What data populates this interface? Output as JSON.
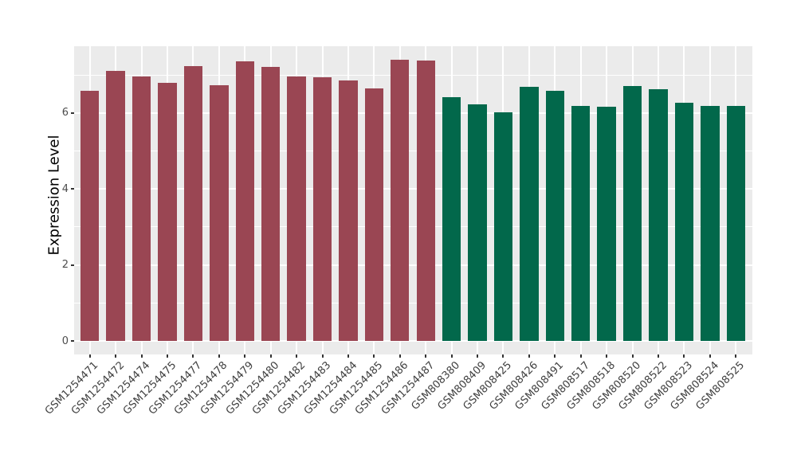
{
  "chart_data": {
    "type": "bar",
    "title": "",
    "xlabel": "",
    "ylabel": "Expression Level",
    "ylim": [
      0,
      7.75
    ],
    "yticks": [
      0,
      2,
      4,
      6
    ],
    "minor_gridlines": [
      1,
      3,
      5,
      7
    ],
    "grid": "white major and minor lines on gray panel, vertical line per category",
    "legend": "none",
    "panel_bg": "#EBEBEB",
    "grid_color": "#FFFFFF",
    "axis_text_color": "#4D4D4D",
    "group_colors": {
      "left_group_red": "#9A4653",
      "right_group_green": "#02684B"
    },
    "categories": [
      "GSM1254471",
      "GSM1254472",
      "GSM1254474",
      "GSM1254475",
      "GSM1254477",
      "GSM1254478",
      "GSM1254479",
      "GSM1254480",
      "GSM1254482",
      "GSM1254483",
      "GSM1254484",
      "GSM1254485",
      "GSM1254486",
      "GSM1254487",
      "GSM808380",
      "GSM808409",
      "GSM808425",
      "GSM808426",
      "GSM808491",
      "GSM808517",
      "GSM808518",
      "GSM808520",
      "GSM808522",
      "GSM808523",
      "GSM808524",
      "GSM808525"
    ],
    "values": [
      6.59,
      7.11,
      6.97,
      6.8,
      7.24,
      6.74,
      7.36,
      7.21,
      6.96,
      6.93,
      6.86,
      6.65,
      7.41,
      7.38,
      6.42,
      6.22,
      6.01,
      6.69,
      6.59,
      6.18,
      6.17,
      6.7,
      6.63,
      6.27,
      6.18,
      6.19
    ],
    "bar_colors": [
      "#9A4653",
      "#9A4653",
      "#9A4653",
      "#9A4653",
      "#9A4653",
      "#9A4653",
      "#9A4653",
      "#9A4653",
      "#9A4653",
      "#9A4653",
      "#9A4653",
      "#9A4653",
      "#9A4653",
      "#9A4653",
      "#02684B",
      "#02684B",
      "#02684B",
      "#02684B",
      "#02684B",
      "#02684B",
      "#02684B",
      "#02684B",
      "#02684B",
      "#02684B",
      "#02684B",
      "#02684B"
    ]
  }
}
